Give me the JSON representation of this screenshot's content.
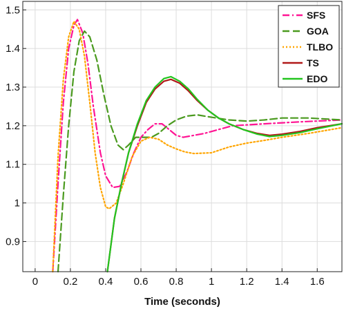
{
  "chart_data": {
    "type": "line",
    "title": "",
    "xlabel": "Time (seconds)",
    "ylabel": "",
    "xlim": [
      -0.07,
      1.74
    ],
    "ylim": [
      0.822,
      1.522
    ],
    "grid": true,
    "legend_position": "top-right",
    "x_ticks": [
      0,
      0.2,
      0.4,
      0.6,
      0.8,
      1,
      1.2,
      1.4,
      1.6
    ],
    "x_tick_labels": [
      "0",
      "0.2",
      "0.4",
      "0.6",
      "0.8",
      "1",
      "1.2",
      "1.4",
      "1.6"
    ],
    "y_ticks": [
      0.9,
      1,
      1.1,
      1.2,
      1.3,
      1.4,
      1.5
    ],
    "y_tick_labels": [
      "0.9",
      "1",
      "1.1",
      "1.2",
      "1.3",
      "1.4",
      "1.5"
    ],
    "series": [
      {
        "name": "SFS",
        "color": "#ff1493",
        "dash": "10,4,2,4",
        "points": [
          [
            0.1,
            0.822
          ],
          [
            0.13,
            1.05
          ],
          [
            0.16,
            1.26
          ],
          [
            0.19,
            1.4
          ],
          [
            0.22,
            1.46
          ],
          [
            0.24,
            1.475
          ],
          [
            0.27,
            1.44
          ],
          [
            0.3,
            1.36
          ],
          [
            0.33,
            1.25
          ],
          [
            0.37,
            1.13
          ],
          [
            0.4,
            1.07
          ],
          [
            0.44,
            1.04
          ],
          [
            0.48,
            1.043
          ],
          [
            0.52,
            1.08
          ],
          [
            0.56,
            1.13
          ],
          [
            0.6,
            1.17
          ],
          [
            0.64,
            1.19
          ],
          [
            0.68,
            1.205
          ],
          [
            0.72,
            1.205
          ],
          [
            0.76,
            1.19
          ],
          [
            0.8,
            1.175
          ],
          [
            0.84,
            1.17
          ],
          [
            0.9,
            1.175
          ],
          [
            0.96,
            1.18
          ],
          [
            1.04,
            1.19
          ],
          [
            1.12,
            1.2
          ],
          [
            1.3,
            1.205
          ],
          [
            1.5,
            1.21
          ],
          [
            1.74,
            1.215
          ]
        ]
      },
      {
        "name": "GOA",
        "color": "#4a9a1e",
        "dash": "10,5",
        "points": [
          [
            0.13,
            0.822
          ],
          [
            0.16,
            1.02
          ],
          [
            0.19,
            1.2
          ],
          [
            0.22,
            1.34
          ],
          [
            0.25,
            1.42
          ],
          [
            0.28,
            1.445
          ],
          [
            0.31,
            1.43
          ],
          [
            0.35,
            1.37
          ],
          [
            0.39,
            1.28
          ],
          [
            0.43,
            1.2
          ],
          [
            0.47,
            1.15
          ],
          [
            0.5,
            1.138
          ],
          [
            0.53,
            1.15
          ],
          [
            0.57,
            1.17
          ],
          [
            0.62,
            1.17
          ],
          [
            0.66,
            1.17
          ],
          [
            0.7,
            1.18
          ],
          [
            0.75,
            1.2
          ],
          [
            0.8,
            1.215
          ],
          [
            0.86,
            1.225
          ],
          [
            0.92,
            1.228
          ],
          [
            1.0,
            1.222
          ],
          [
            1.1,
            1.215
          ],
          [
            1.2,
            1.212
          ],
          [
            1.3,
            1.215
          ],
          [
            1.4,
            1.22
          ],
          [
            1.55,
            1.22
          ],
          [
            1.74,
            1.215
          ]
        ]
      },
      {
        "name": "TLBO",
        "color": "#ffa500",
        "dash": "2,3",
        "points": [
          [
            0.1,
            0.822
          ],
          [
            0.13,
            1.12
          ],
          [
            0.16,
            1.32
          ],
          [
            0.19,
            1.43
          ],
          [
            0.22,
            1.47
          ],
          [
            0.25,
            1.45
          ],
          [
            0.28,
            1.38
          ],
          [
            0.31,
            1.26
          ],
          [
            0.34,
            1.13
          ],
          [
            0.37,
            1.04
          ],
          [
            0.4,
            0.99
          ],
          [
            0.42,
            0.985
          ],
          [
            0.46,
            1.0
          ],
          [
            0.5,
            1.05
          ],
          [
            0.55,
            1.12
          ],
          [
            0.6,
            1.16
          ],
          [
            0.65,
            1.17
          ],
          [
            0.7,
            1.165
          ],
          [
            0.75,
            1.15
          ],
          [
            0.8,
            1.14
          ],
          [
            0.85,
            1.132
          ],
          [
            0.9,
            1.128
          ],
          [
            1.0,
            1.13
          ],
          [
            1.1,
            1.145
          ],
          [
            1.2,
            1.155
          ],
          [
            1.3,
            1.162
          ],
          [
            1.4,
            1.17
          ],
          [
            1.55,
            1.18
          ],
          [
            1.74,
            1.195
          ]
        ]
      },
      {
        "name": "TS",
        "color": "#b01818",
        "dash": "",
        "points": [
          [
            0.41,
            0.822
          ],
          [
            0.45,
            0.96
          ],
          [
            0.49,
            1.05
          ],
          [
            0.53,
            1.13
          ],
          [
            0.58,
            1.2
          ],
          [
            0.63,
            1.26
          ],
          [
            0.68,
            1.295
          ],
          [
            0.73,
            1.315
          ],
          [
            0.77,
            1.32
          ],
          [
            0.82,
            1.31
          ],
          [
            0.87,
            1.29
          ],
          [
            0.92,
            1.265
          ],
          [
            0.98,
            1.24
          ],
          [
            1.04,
            1.22
          ],
          [
            1.1,
            1.205
          ],
          [
            1.18,
            1.19
          ],
          [
            1.26,
            1.18
          ],
          [
            1.33,
            1.175
          ],
          [
            1.4,
            1.178
          ],
          [
            1.5,
            1.185
          ],
          [
            1.6,
            1.195
          ],
          [
            1.74,
            1.205
          ]
        ]
      },
      {
        "name": "EDO",
        "color": "#22c51e",
        "dash": "",
        "points": [
          [
            0.41,
            0.822
          ],
          [
            0.45,
            0.96
          ],
          [
            0.49,
            1.05
          ],
          [
            0.53,
            1.13
          ],
          [
            0.58,
            1.205
          ],
          [
            0.63,
            1.265
          ],
          [
            0.68,
            1.3
          ],
          [
            0.73,
            1.322
          ],
          [
            0.77,
            1.327
          ],
          [
            0.82,
            1.315
          ],
          [
            0.87,
            1.295
          ],
          [
            0.92,
            1.268
          ],
          [
            0.98,
            1.24
          ],
          [
            1.04,
            1.22
          ],
          [
            1.1,
            1.205
          ],
          [
            1.18,
            1.19
          ],
          [
            1.26,
            1.178
          ],
          [
            1.33,
            1.172
          ],
          [
            1.4,
            1.175
          ],
          [
            1.5,
            1.182
          ],
          [
            1.6,
            1.192
          ],
          [
            1.74,
            1.205
          ]
        ]
      }
    ]
  }
}
